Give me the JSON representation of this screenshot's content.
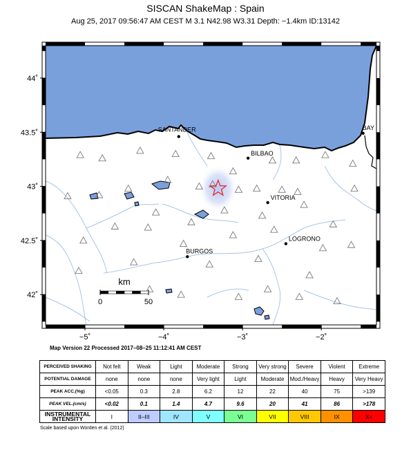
{
  "title": "SISCAN ShakeMap : Spain",
  "subtitle": "Aug 25, 2017 09:56:47 AM CEST    M 3.1    N42.98 W3.31    Depth: −1.4km    ID:13142",
  "map_version": "Map Version 22 Processed 2017–08–25 11:12:41 AM CEST",
  "footnote": "Scale based upon Worden et al. (2012)",
  "map": {
    "extent": {
      "lon": [
        -5.5,
        -1.3
      ],
      "lat": [
        41.72,
        44.3
      ]
    },
    "lon_ticks": [
      {
        "value": -5,
        "label": "−5˚"
      },
      {
        "value": -4,
        "label": "−4˚"
      },
      {
        "value": -3,
        "label": "−3˚"
      },
      {
        "value": -2,
        "label": "−2˚"
      }
    ],
    "lat_ticks": [
      {
        "value": 44,
        "label": "44˚"
      },
      {
        "value": 43.5,
        "label": "43.5˚"
      },
      {
        "value": 43,
        "label": "43˚"
      },
      {
        "value": 42.5,
        "label": "42.5˚"
      },
      {
        "value": 42,
        "label": "42˚"
      }
    ],
    "colors": {
      "sea": "#7aa0dc",
      "land": "#ffffff",
      "river": "#a8c4e8",
      "coast": "#000000",
      "epicenter": "#e8282c",
      "stations": "#7a7a7a"
    },
    "epicenter": {
      "lon": -3.31,
      "lat": 42.98
    },
    "cities": [
      {
        "name": "SANTANDER",
        "lon": -3.81,
        "lat": 43.46
      },
      {
        "name": "BILBAO",
        "lon": -2.93,
        "lat": 43.26
      },
      {
        "name": "BAY",
        "lon": -1.47,
        "lat": 43.49
      },
      {
        "name": "VITORIA",
        "lon": -2.68,
        "lat": 42.85
      },
      {
        "name": "LOGRONO",
        "lon": -2.45,
        "lat": 42.47
      },
      {
        "name": "BURGOS",
        "lon": -3.7,
        "lat": 42.35
      }
    ],
    "stations": [
      [
        -5.06,
        43.29
      ],
      [
        -4.78,
        43.26
      ],
      [
        -4.3,
        43.33
      ],
      [
        -3.85,
        43.3
      ],
      [
        -3.4,
        43.28
      ],
      [
        -2.32,
        43.24
      ],
      [
        -1.95,
        43.29
      ],
      [
        -1.6,
        43.21
      ],
      [
        -2.62,
        43.24
      ],
      [
        -3.12,
        43.14
      ],
      [
        -3.38,
        43.02
      ],
      [
        -3.05,
        42.97
      ],
      [
        -2.82,
        42.98
      ],
      [
        -2.5,
        42.97
      ],
      [
        -2.3,
        42.95
      ],
      [
        -1.58,
        42.98
      ],
      [
        -3.55,
        43.0
      ],
      [
        -3.95,
        43.06
      ],
      [
        -4.45,
        42.98
      ],
      [
        -4.82,
        42.92
      ],
      [
        -5.22,
        42.91
      ],
      [
        -4.1,
        42.76
      ],
      [
        -3.65,
        42.67
      ],
      [
        -3.23,
        42.78
      ],
      [
        -2.75,
        42.73
      ],
      [
        -2.22,
        42.83
      ],
      [
        -1.85,
        42.65
      ],
      [
        -1.62,
        42.46
      ],
      [
        -2.6,
        42.6
      ],
      [
        -3.12,
        42.55
      ],
      [
        -4.2,
        42.62
      ],
      [
        -4.62,
        42.63
      ],
      [
        -5.02,
        42.5
      ],
      [
        -3.75,
        42.47
      ],
      [
        -4.38,
        42.3
      ],
      [
        -3.42,
        42.28
      ],
      [
        -2.8,
        42.33
      ],
      [
        -2.15,
        42.18
      ],
      [
        -1.98,
        42.43
      ],
      [
        -4.18,
        42.05
      ],
      [
        -3.05,
        41.98
      ],
      [
        -2.28,
        41.98
      ],
      [
        -2.68,
        42.05
      ],
      [
        -1.8,
        41.94
      ],
      [
        -5.08,
        42.22
      ],
      [
        -3.78,
        42.0
      ]
    ],
    "scale_bar": {
      "unit": "km",
      "labels": [
        "0",
        "50"
      ]
    }
  },
  "legend": {
    "rows": [
      {
        "header": "PERCEIVED SHAKING",
        "cells": [
          "Not felt",
          "Weak",
          "Light",
          "Moderate",
          "Strong",
          "Very strong",
          "Severe",
          "Violent",
          "Extreme"
        ]
      },
      {
        "header": "POTENTIAL DAMAGE",
        "cells": [
          "none",
          "none",
          "none",
          "Very light",
          "Light",
          "Moderate",
          "Mod./Heavy",
          "Heavy",
          "Very Heavy"
        ]
      },
      {
        "header": "PEAK ACC.(%g)",
        "cells": [
          "<0.05",
          "0.3",
          "2.8",
          "6.2",
          "12",
          "22",
          "40",
          "75",
          ">139"
        ]
      },
      {
        "header": "PEAK VEL.(cm/s)",
        "cells": [
          "<0.02",
          "0.1",
          "1.4",
          "4.7",
          "9.6",
          "20",
          "41",
          "86",
          ">178"
        ]
      },
      {
        "header": "INSTRUMENTAL INTENSITY",
        "cells": [
          "I",
          "II–III",
          "IV",
          "V",
          "VI",
          "VII",
          "VIII",
          "IX",
          "X+"
        ]
      }
    ],
    "intensity_colors": [
      "#ffffff",
      "#bfccff",
      "#a0e6ff",
      "#80ffff",
      "#7aff93",
      "#ffff00",
      "#ffc800",
      "#ff9100",
      "#ff0000"
    ]
  }
}
